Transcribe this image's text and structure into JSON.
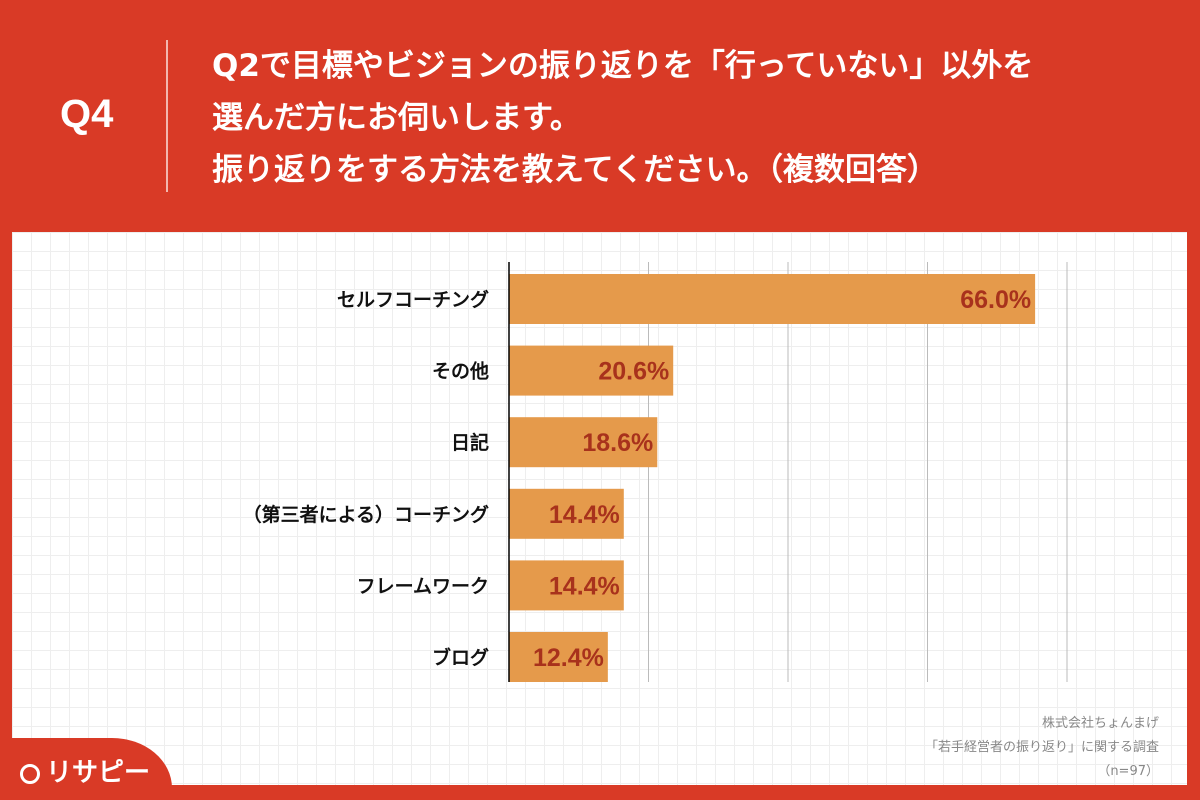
{
  "header": {
    "question_number": "Q4",
    "title_lines": [
      "Q2で目標やビジョンの振り返りを「行っていない」以外を",
      "選んだ方にお伺いします。",
      "振り返りをする方法を教えてください。（複数回答）"
    ]
  },
  "source": {
    "company": "株式会社ちょんまげ",
    "survey": "「若手経営者の振り返り」に関する調査",
    "sample": "（n=97）"
  },
  "logo": {
    "text": "リサピー"
  },
  "colors": {
    "background": "#d93a26",
    "bar": "#e59a4b",
    "value_label": "#a8321c"
  },
  "chart_data": {
    "type": "bar",
    "orientation": "horizontal",
    "categories": [
      "セルフコーチング",
      "その他",
      "日記",
      "（第三者による）コーチング",
      "フレームワーク",
      "ブログ"
    ],
    "values": [
      66.0,
      20.6,
      18.6,
      14.4,
      14.4,
      12.4
    ],
    "value_labels": [
      "66.0%",
      "20.6%",
      "18.6%",
      "14.4%",
      "14.4%",
      "12.4%"
    ],
    "xlim": [
      0,
      70
    ],
    "grid": true,
    "unit": "%"
  }
}
